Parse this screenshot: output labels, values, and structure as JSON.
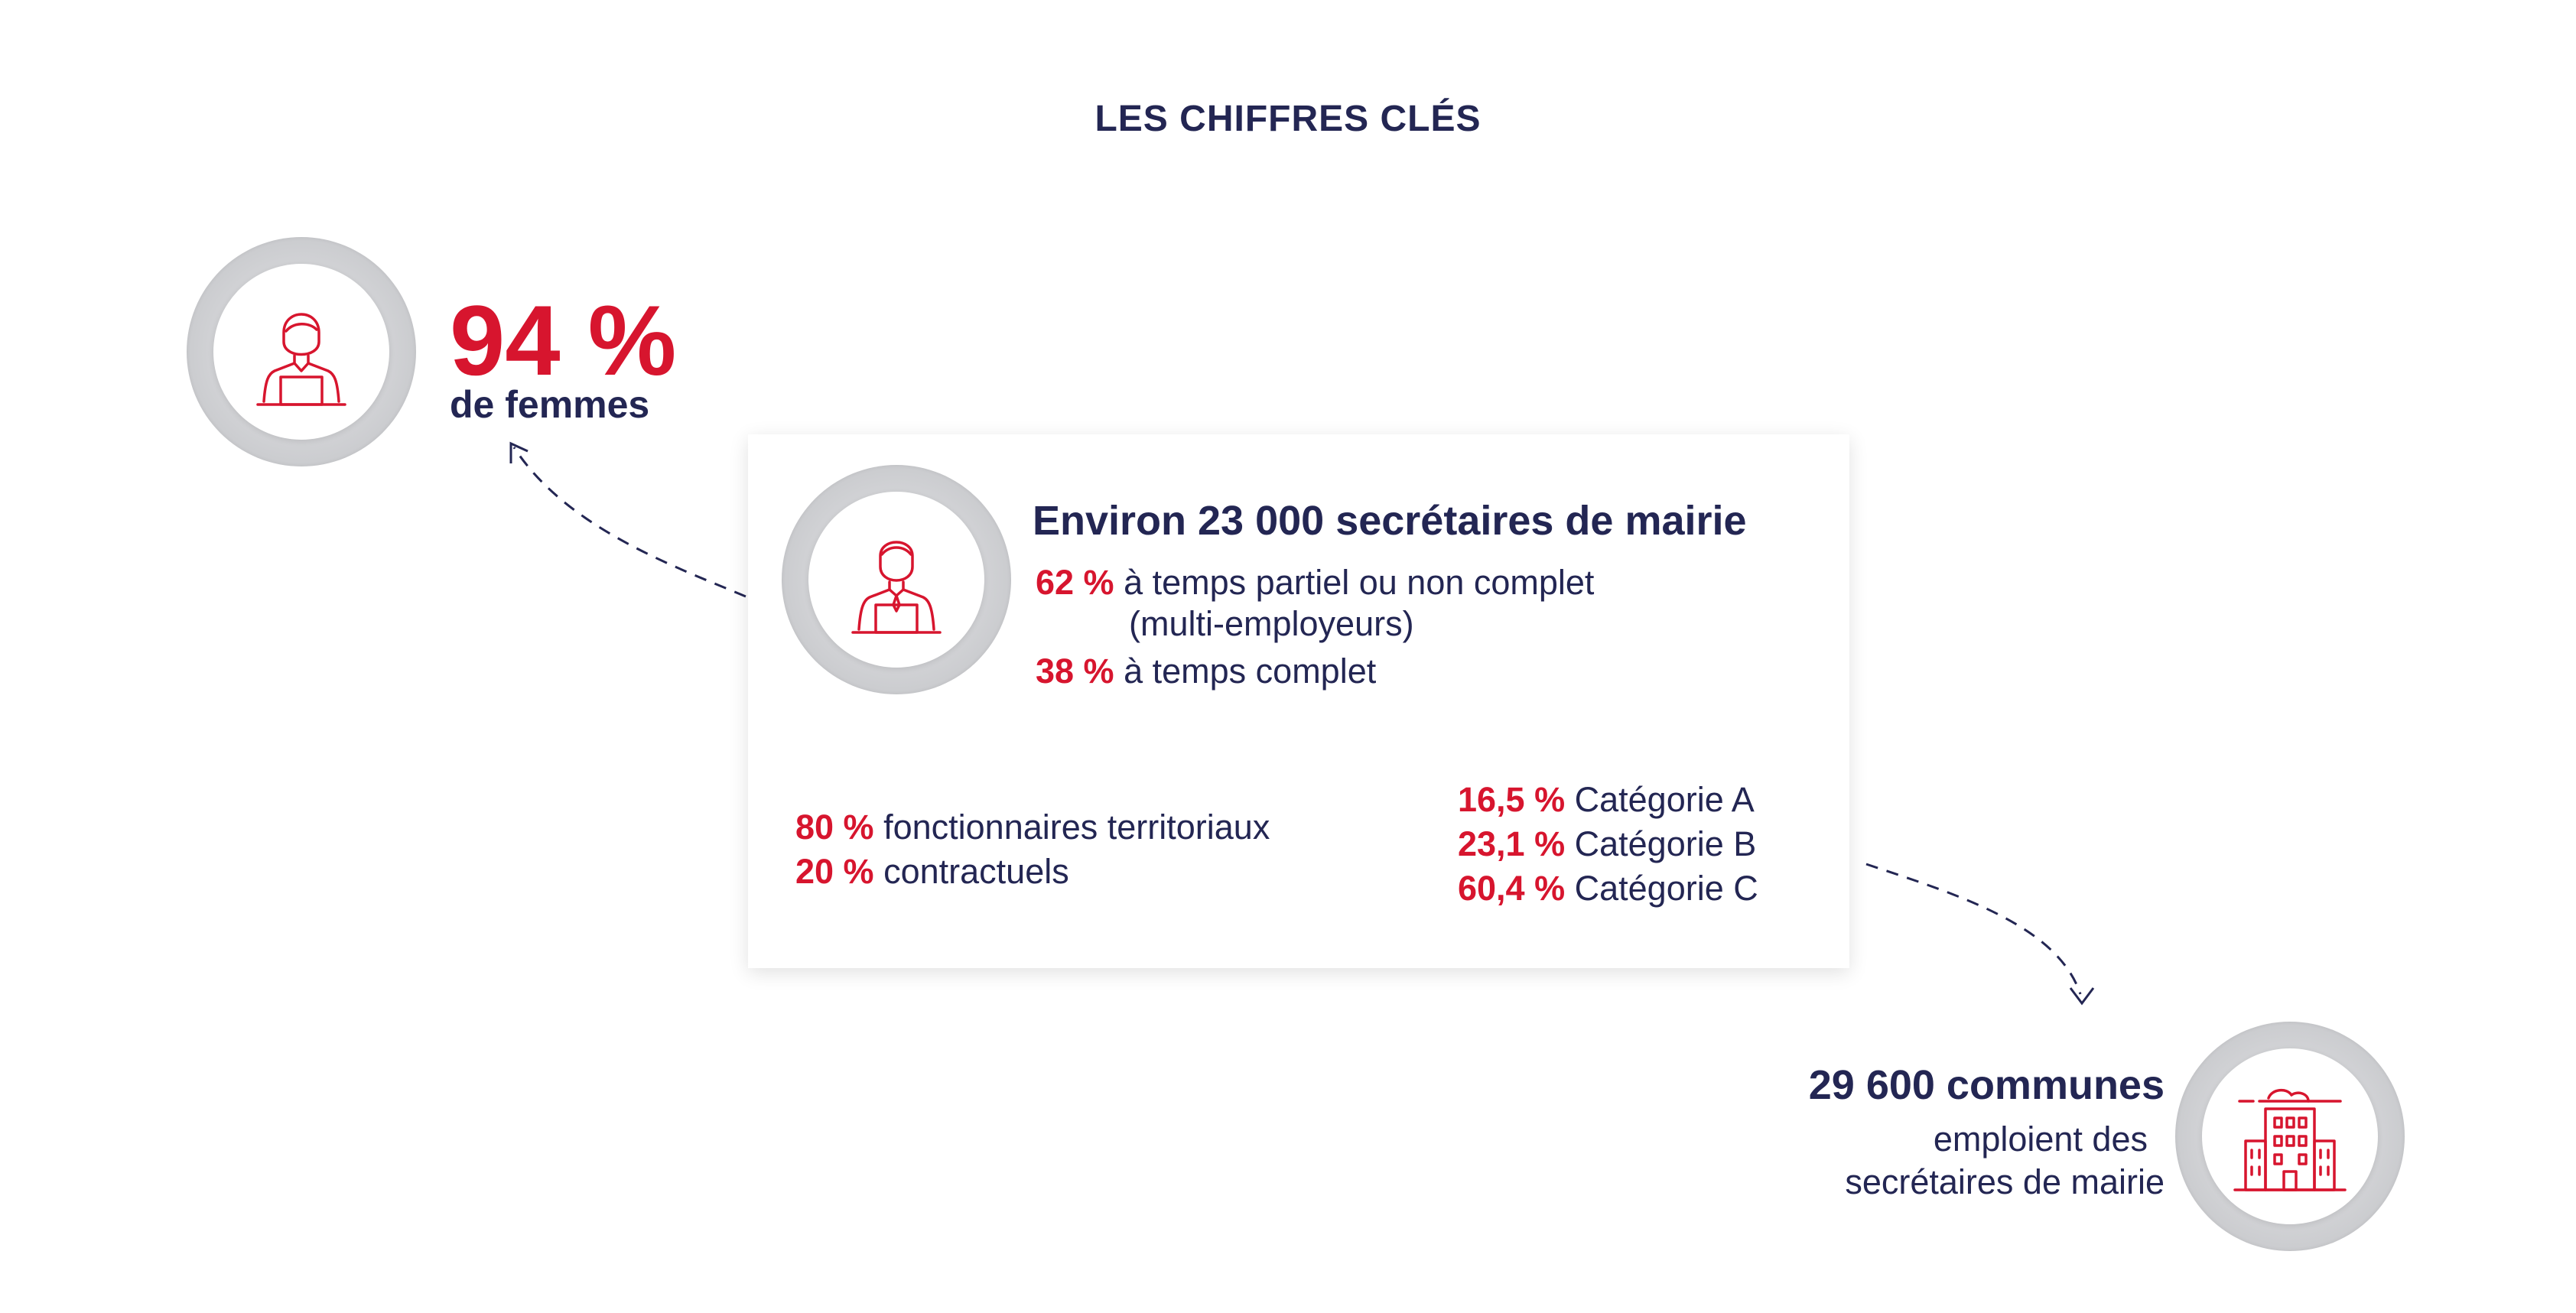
{
  "title": "LES CHIFFRES CLÉS",
  "women": {
    "value": "94 %",
    "label": "de femmes"
  },
  "card": {
    "title": "Environ 23 000 secrétaires de mairie",
    "time_lines": [
      {
        "pct": "62 %",
        "text": "à temps partiel ou non complet"
      },
      {
        "pct": "",
        "text": "(multi-employeurs)"
      },
      {
        "pct": "38 %",
        "text": "à temps complet"
      }
    ],
    "status_lines": [
      {
        "pct": "80 %",
        "text": "fonctionnaires territoriaux"
      },
      {
        "pct": "20 %",
        "text": "contractuels"
      }
    ],
    "category_lines": [
      {
        "pct": "16,5 %",
        "text": "Catégorie A"
      },
      {
        "pct": "23,1 %",
        "text": "Catégorie B"
      },
      {
        "pct": "60,4 %",
        "text": "Catégorie C"
      }
    ]
  },
  "communes": {
    "value": "29 600 communes",
    "line1": "emploient des",
    "line2": "secrétaires de mairie"
  },
  "icons": {
    "woman": "woman-at-desk-icon",
    "man": "man-at-desk-icon",
    "building": "town-hall-building-icon"
  },
  "colors": {
    "accent": "#d7152e",
    "navy": "#232653",
    "ring": "#cfd0d3"
  }
}
